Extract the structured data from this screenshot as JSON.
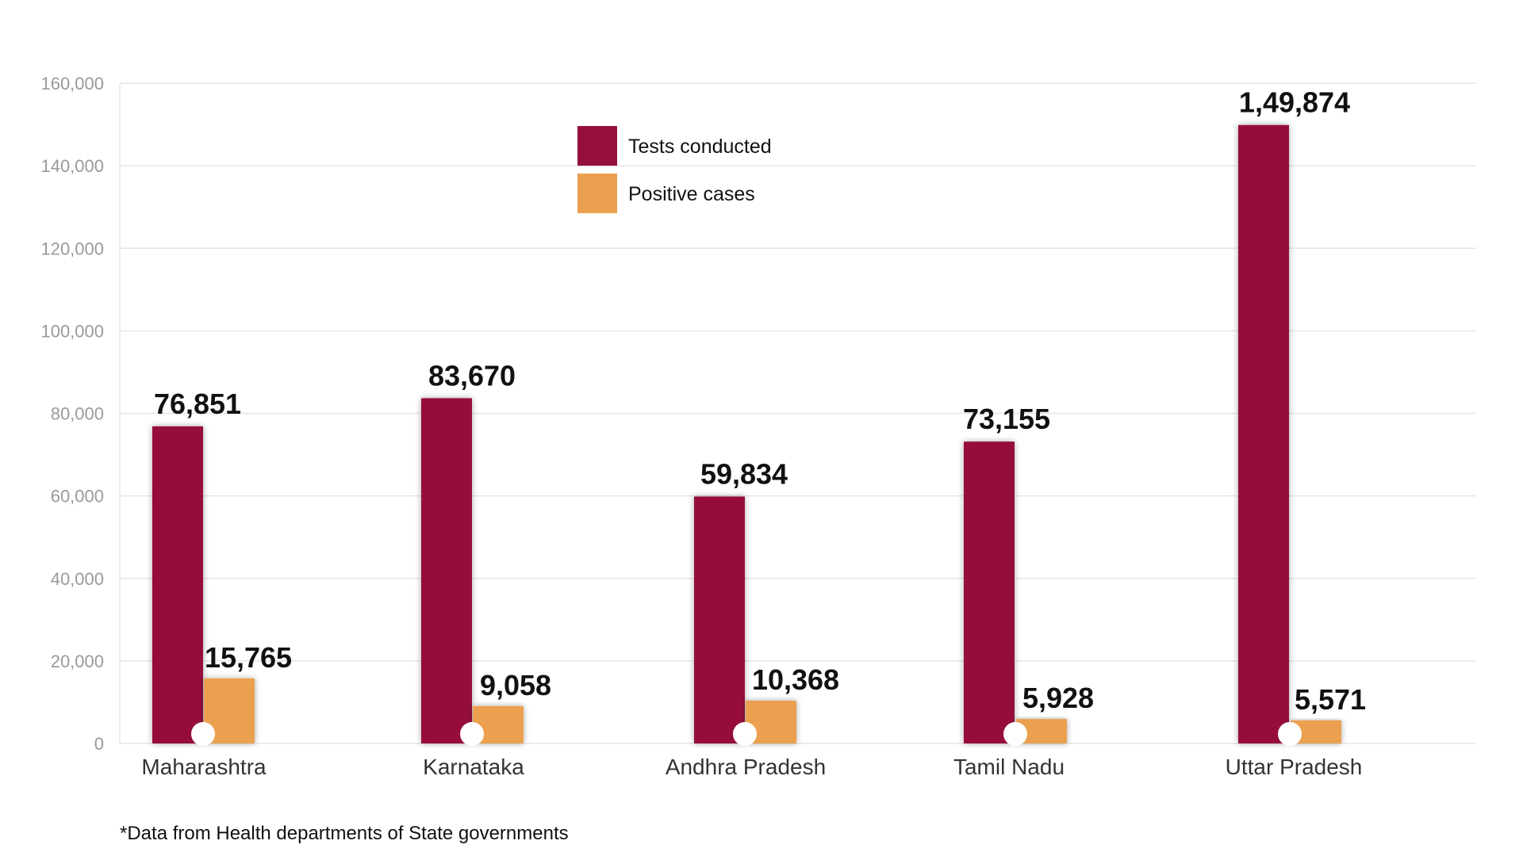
{
  "chart_data": {
    "type": "bar",
    "categories": [
      "Maharashtra",
      "Karnataka",
      "Andhra Pradesh",
      "Tamil Nadu",
      "Uttar Pradesh"
    ],
    "series": [
      {
        "name": "Tests conducted",
        "color": "#96103D",
        "values": [
          76851,
          83670,
          59834,
          73155,
          149874
        ],
        "labels": [
          "76,851",
          "83,670",
          "59,834",
          "73,155",
          "1,49,874"
        ]
      },
      {
        "name": "Positive cases",
        "color": "#EBA050",
        "values": [
          15765,
          9058,
          10368,
          5928,
          5571
        ],
        "labels": [
          "15,765",
          "9,058",
          "10,368",
          "5,928",
          "5,571"
        ]
      }
    ],
    "ylim": [
      0,
      160000
    ],
    "yticks": [
      0,
      20000,
      40000,
      60000,
      80000,
      100000,
      120000,
      140000,
      160000
    ],
    "ytick_labels": [
      "0",
      "20,000",
      "40,000",
      "60,000",
      "80,000",
      "100,000",
      "120,000",
      "140,000",
      "160,000"
    ],
    "title": "",
    "xlabel": "",
    "ylabel": "",
    "grid": true,
    "legend_position": "top-center"
  },
  "footnote": "*Data from Health departments of State governments"
}
